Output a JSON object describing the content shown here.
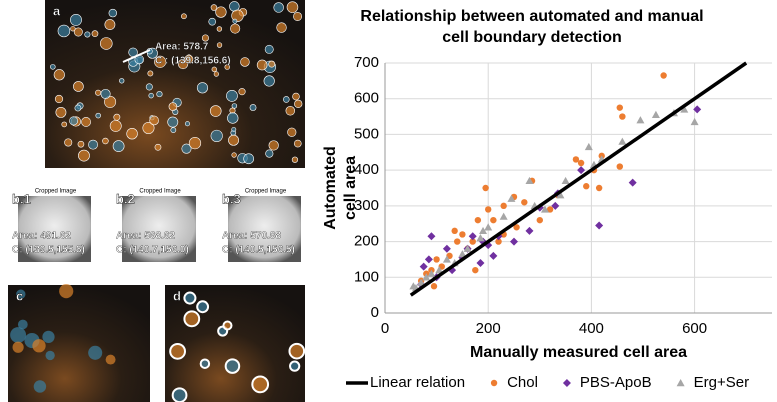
{
  "panels": [
    {
      "label": "a",
      "notes": [
        "Area: 578.7",
        "C : (139.8,156.6)"
      ]
    },
    {
      "label": "b.1",
      "caption": "Cropped Image",
      "notes": [
        "Area: 491.62",
        "C: (139.5,155.8)"
      ]
    },
    {
      "label": "b.2",
      "caption": "Cropped Image",
      "notes": [
        "Area: 568.62",
        "C: (140.7,156.0)"
      ]
    },
    {
      "label": "b.3",
      "caption": "Cropped Image",
      "notes": [
        "Area: 570.88",
        "C: (140.5,156.5)"
      ]
    },
    {
      "label": "c"
    },
    {
      "label": "d"
    }
  ],
  "chart_data": {
    "type": "scatter",
    "title": [
      "Relationship between automated and manual",
      "cell boundary detection"
    ],
    "x_label": "Manually measured cell area",
    "y_label": [
      "Automated",
      "cell area"
    ],
    "xlim": [
      0,
      750
    ],
    "ylim": [
      0,
      700
    ],
    "xticks": [
      0,
      200,
      400,
      600
    ],
    "yticks": [
      0,
      100,
      200,
      300,
      400,
      500,
      600,
      700
    ],
    "grid": true,
    "legend": "bottom",
    "series": [
      {
        "name": "Linear relation",
        "type": "line",
        "color": "#000000",
        "x": [
          50,
          700
        ],
        "values": [
          50,
          700
        ]
      },
      {
        "name": "Chol",
        "marker": "circle",
        "color": "#ed7d31",
        "x": [
          540,
          455,
          460,
          420,
          405,
          455,
          390,
          380,
          370,
          415,
          335,
          320,
          300,
          285,
          270,
          250,
          230,
          195,
          200,
          210,
          230,
          220,
          180,
          170,
          160,
          150,
          140,
          125,
          110,
          100,
          90,
          80,
          70,
          95,
          135,
          175,
          255
        ],
        "values": [
          665,
          575,
          550,
          440,
          400,
          410,
          355,
          420,
          430,
          350,
          330,
          290,
          260,
          370,
          310,
          325,
          300,
          350,
          290,
          260,
          220,
          200,
          260,
          200,
          180,
          220,
          200,
          160,
          130,
          150,
          120,
          110,
          90,
          75,
          230,
          120,
          240
        ]
      },
      {
        "name": "PBS-ApoB",
        "marker": "diamond",
        "color": "#7030a0",
        "x": [
          605,
          480,
          415,
          380,
          335,
          330,
          300,
          280,
          250,
          220,
          200,
          185,
          170,
          160,
          150,
          130,
          120,
          100,
          90,
          85,
          75,
          70,
          190,
          210
        ],
        "values": [
          570,
          365,
          245,
          400,
          335,
          300,
          295,
          230,
          200,
          215,
          190,
          140,
          215,
          180,
          155,
          120,
          180,
          100,
          215,
          150,
          130,
          80,
          200,
          160
        ]
      },
      {
        "name": "Erg+Ser",
        "marker": "triangle",
        "color": "#a6a6a6",
        "x": [
          600,
          580,
          560,
          525,
          495,
          460,
          420,
          405,
          395,
          350,
          340,
          290,
          280,
          245,
          230,
          200,
          185,
          160,
          150,
          135,
          120,
          105,
          90,
          80,
          70,
          60,
          55,
          190,
          310
        ],
        "values": [
          535,
          570,
          560,
          555,
          540,
          480,
          430,
          415,
          465,
          370,
          330,
          300,
          370,
          320,
          270,
          240,
          210,
          180,
          165,
          140,
          150,
          120,
          110,
          100,
          85,
          70,
          75,
          230,
          290
        ]
      }
    ]
  }
}
